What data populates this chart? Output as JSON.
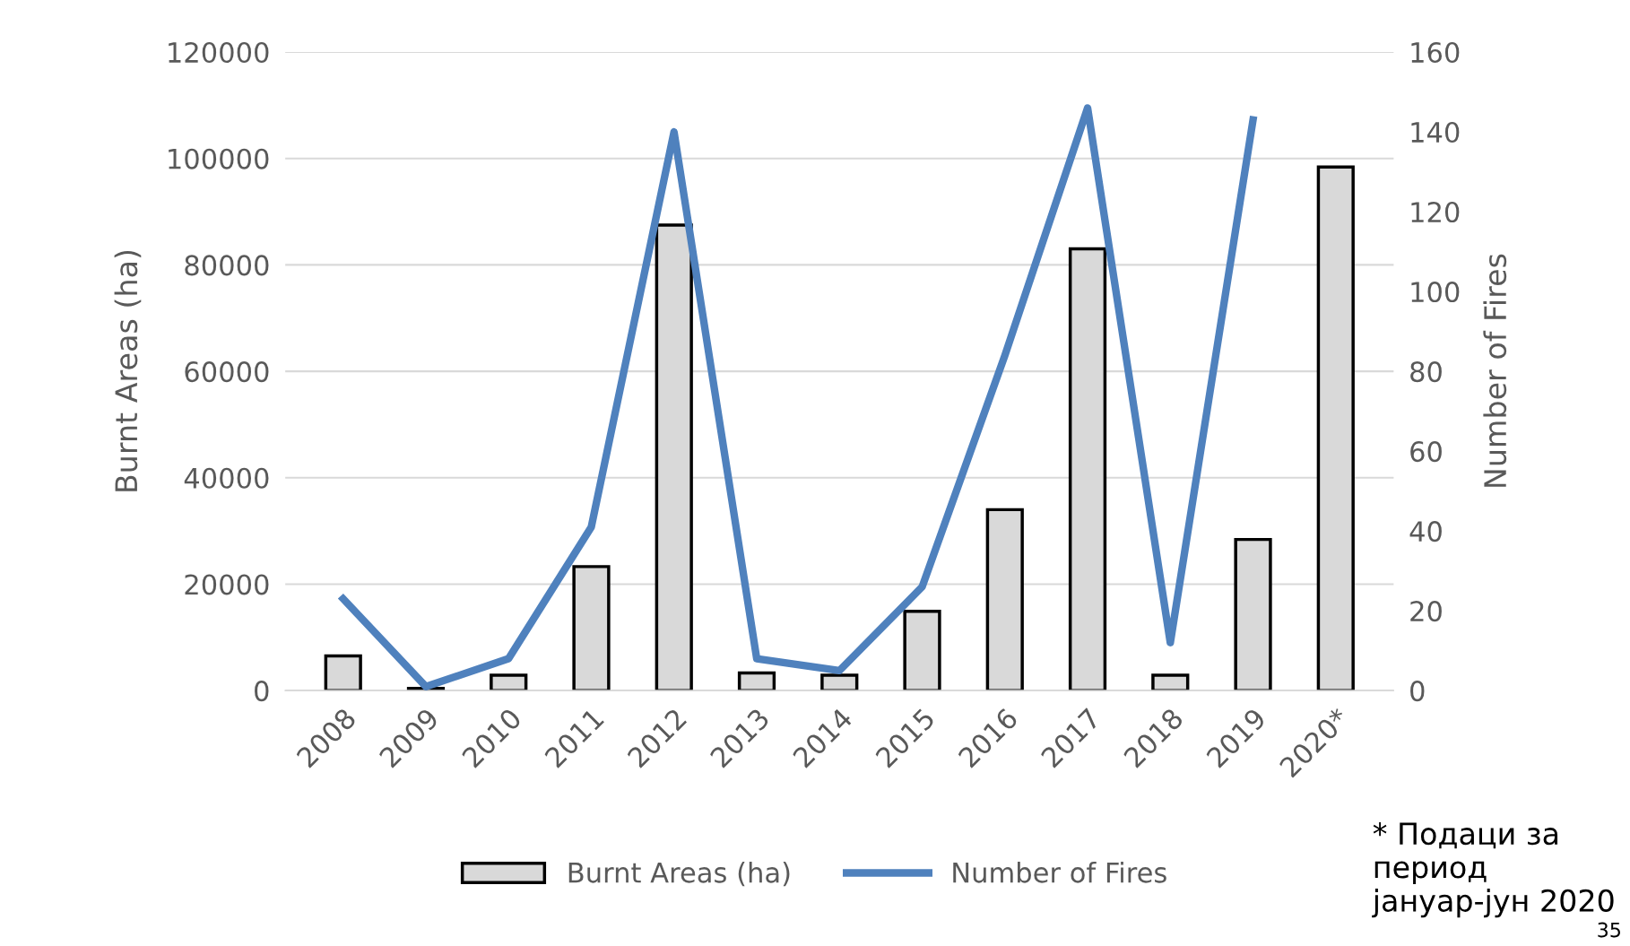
{
  "chart_data": {
    "type": "bar",
    "categories": [
      "2008",
      "2009",
      "2010",
      "2011",
      "2012",
      "2013",
      "2014",
      "2015",
      "2016",
      "2017",
      "2018",
      "2019",
      "2020*"
    ],
    "ylabel": "Burnt Areas (ha)",
    "y2label": "Number of Fires",
    "series": [
      {
        "name": "Burnt Areas (ha)",
        "color": "#d9d9d9",
        "values": [
          6500,
          400,
          2900,
          23300,
          87500,
          3300,
          2900,
          14900,
          34000,
          83000,
          2900,
          28400,
          98400
        ]
      },
      {
        "name": "Number of Fires",
        "type": "line",
        "axis": "y2",
        "color": "#4f81bd",
        "values": [
          23,
          1,
          8,
          41,
          140,
          8,
          5,
          26,
          84,
          146,
          12,
          143,
          null
        ]
      }
    ],
    "ylim": [
      0,
      120000
    ],
    "yticks": [
      0,
      20000,
      40000,
      60000,
      80000,
      100000,
      120000
    ],
    "y2lim": [
      0,
      160
    ],
    "y2ticks": [
      0,
      20,
      40,
      60,
      80,
      100,
      120,
      140,
      160
    ],
    "grid": "y",
    "legend": "bottom",
    "marker": "none",
    "line_style": "solid",
    "annotations": [
      "* Подаци за период јануар-јун 2020",
      "35"
    ]
  }
}
